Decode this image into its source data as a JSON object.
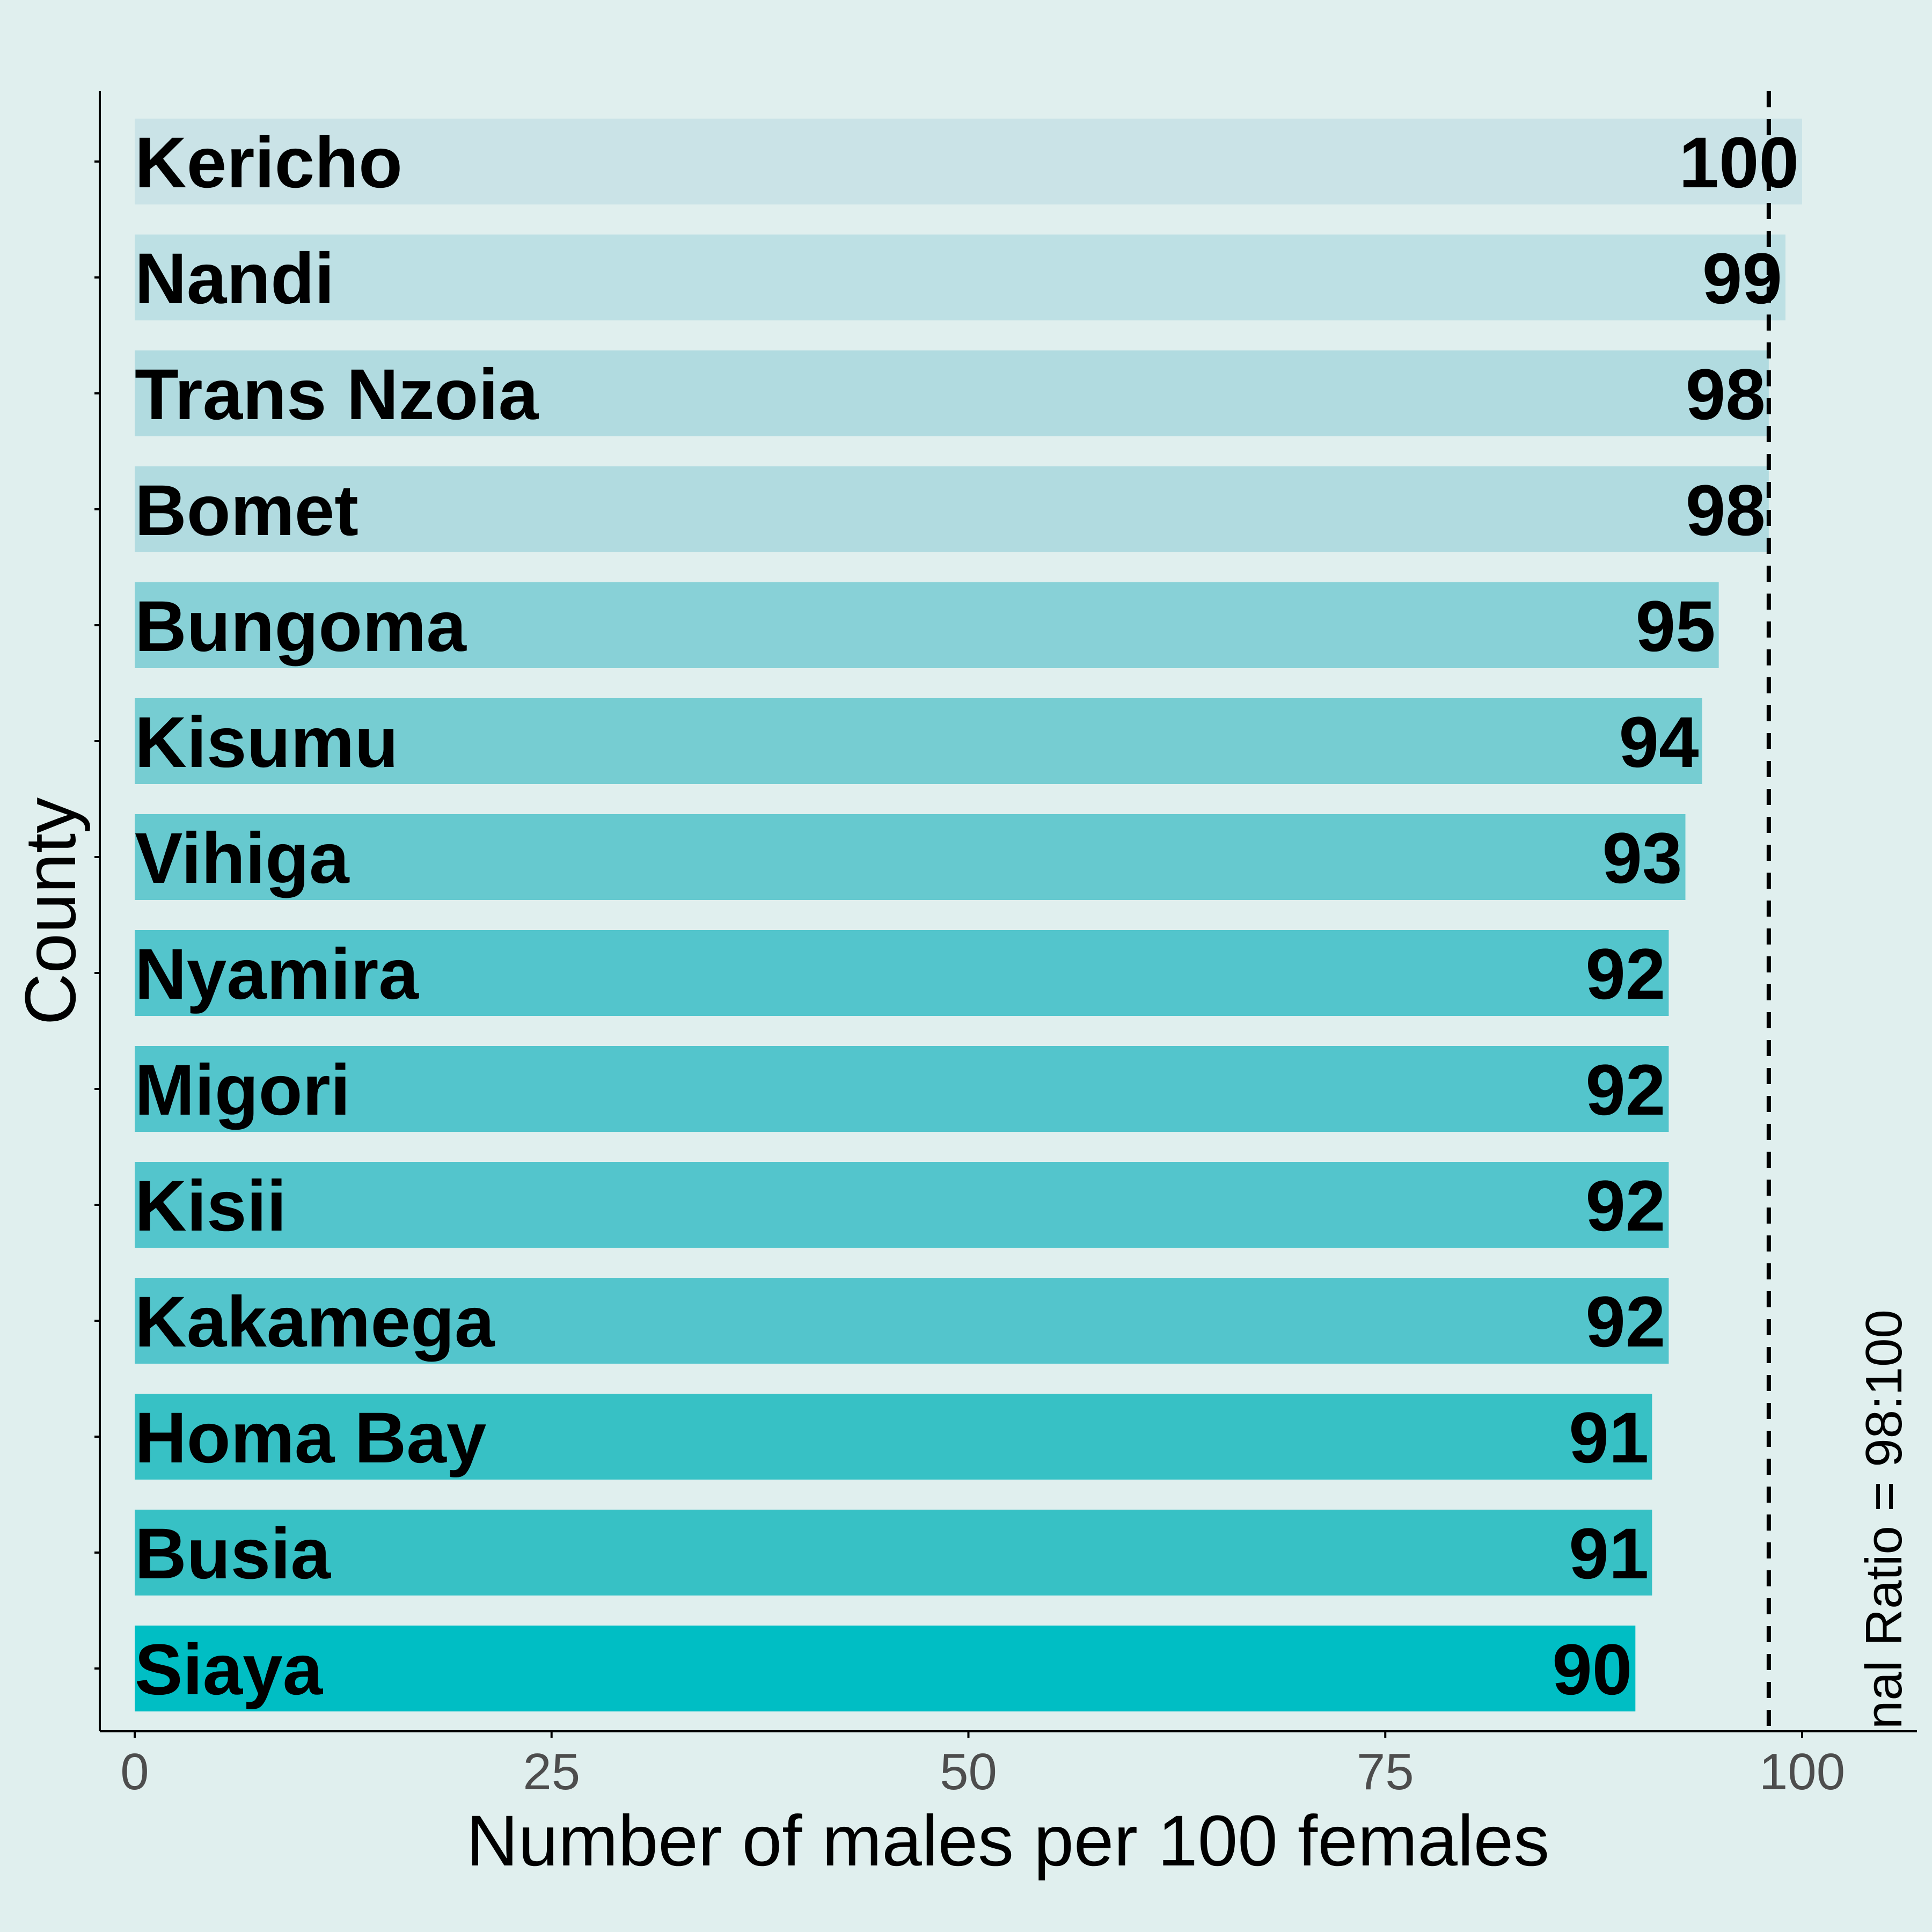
{
  "chart_data": {
    "type": "bar",
    "orientation": "horizontal",
    "categories": [
      "Kericho",
      "Nandi",
      "Trans Nzoia",
      "Bomet",
      "Bungoma",
      "Kisumu",
      "Vihiga",
      "Nyamira",
      "Migori",
      "Kisii",
      "Kakamega",
      "Homa Bay",
      "Busia",
      "Siaya"
    ],
    "values": [
      100,
      99,
      98,
      98,
      95,
      94,
      93,
      92,
      92,
      92,
      92,
      91,
      91,
      90
    ],
    "value_labels": [
      "100",
      "99",
      "98",
      "98",
      "95",
      "94",
      "93",
      "92",
      "92",
      "92",
      "92",
      "91",
      "91",
      "90"
    ],
    "bar_colors": [
      "#cae3e7",
      "#bde0e4",
      "#b1dbe0",
      "#b1dbe0",
      "#88d1d7",
      "#76cdd2",
      "#66c9cf",
      "#53c5cc",
      "#53c5cc",
      "#53c5cc",
      "#53c5cc",
      "#37c1c5",
      "#37c1c5",
      "#00bec4"
    ],
    "xlabel": "Number of males per 100 females",
    "ylabel": "County",
    "xlim": [
      0,
      100
    ],
    "x_ticks": [
      0,
      25,
      50,
      75,
      100
    ],
    "x_tick_labels": [
      "0",
      "25",
      "50",
      "75",
      "100"
    ],
    "reference_line": {
      "x": 98,
      "label": "nal Ratio = 98:100",
      "style": "dashed",
      "color": "#000000"
    },
    "grid": false,
    "legend": "none",
    "background": "#e0efee"
  }
}
